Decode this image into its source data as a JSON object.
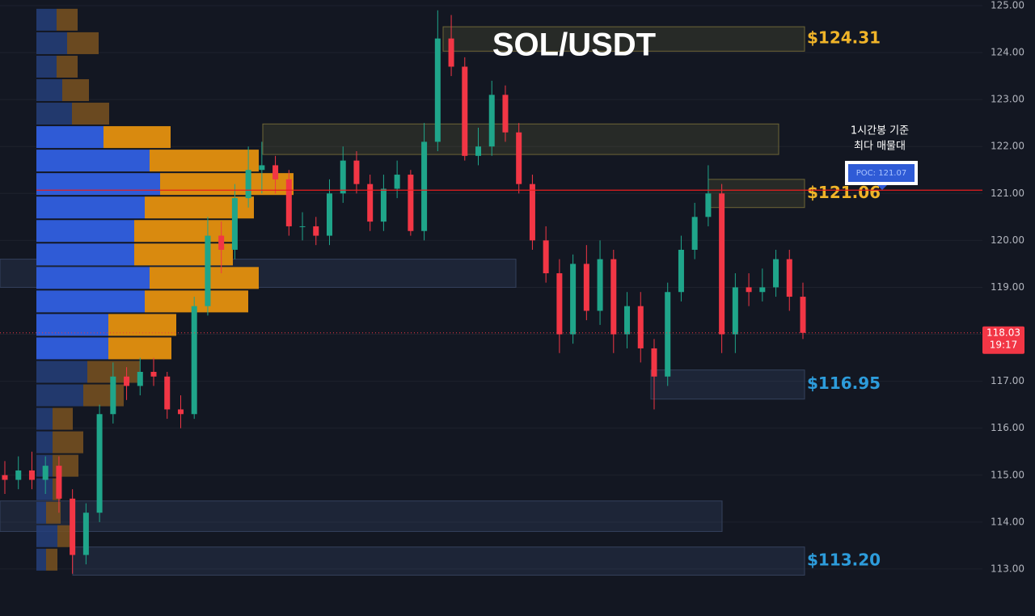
{
  "chart_data": {
    "type": "candlestick",
    "title": "SOL/USDT",
    "ylim": [
      112,
      125.12
    ],
    "yticks": [
      {
        "value": 125,
        "label": "125.00"
      },
      {
        "value": 124,
        "label": "124.00"
      },
      {
        "value": 123,
        "label": "123.00"
      },
      {
        "value": 122,
        "label": "122.00"
      },
      {
        "value": 121,
        "label": "121.00"
      },
      {
        "value": 120,
        "label": "120.00"
      },
      {
        "value": 119,
        "label": "119.00"
      },
      {
        "value": 118,
        "label": "118.00"
      },
      {
        "value": 117,
        "label": "117.00"
      },
      {
        "value": 116,
        "label": "116.00"
      },
      {
        "value": 115,
        "label": "115.00"
      },
      {
        "value": 114,
        "label": "114.00"
      },
      {
        "value": 113,
        "label": "113.00"
      }
    ],
    "grid": true,
    "up_color": "#1fa58a",
    "down_color": "#f23645",
    "candles": [
      [
        115.0,
        115.3,
        114.6,
        114.9
      ],
      [
        114.9,
        115.4,
        114.7,
        115.1
      ],
      [
        115.1,
        115.5,
        114.7,
        114.9
      ],
      [
        114.9,
        115.4,
        114.6,
        115.2
      ],
      [
        115.2,
        115.4,
        114.2,
        114.5
      ],
      [
        114.5,
        114.7,
        112.9,
        113.3
      ],
      [
        113.3,
        114.4,
        113.1,
        114.2
      ],
      [
        114.2,
        116.5,
        114.0,
        116.3
      ],
      [
        116.3,
        117.4,
        116.1,
        117.1
      ],
      [
        117.1,
        117.3,
        116.6,
        116.9
      ],
      [
        116.9,
        117.5,
        116.7,
        117.2
      ],
      [
        117.2,
        117.5,
        116.9,
        117.1
      ],
      [
        117.1,
        117.2,
        116.2,
        116.4
      ],
      [
        116.4,
        116.7,
        116.0,
        116.3
      ],
      [
        116.3,
        118.8,
        116.2,
        118.6
      ],
      [
        118.6,
        120.5,
        118.4,
        120.1
      ],
      [
        120.1,
        120.4,
        119.3,
        119.8
      ],
      [
        119.8,
        121.2,
        119.6,
        120.9
      ],
      [
        120.9,
        122.0,
        120.7,
        121.5
      ],
      [
        121.5,
        122.1,
        121.0,
        121.6
      ],
      [
        121.6,
        121.8,
        121.0,
        121.3
      ],
      [
        121.3,
        121.5,
        120.1,
        120.3
      ],
      [
        120.3,
        120.6,
        120.0,
        120.3
      ],
      [
        120.3,
        120.5,
        119.9,
        120.1
      ],
      [
        120.1,
        121.3,
        119.9,
        121.0
      ],
      [
        121.0,
        122.0,
        120.8,
        121.7
      ],
      [
        121.7,
        121.9,
        121.0,
        121.2
      ],
      [
        121.2,
        121.4,
        120.2,
        120.4
      ],
      [
        120.4,
        121.4,
        120.2,
        121.1
      ],
      [
        121.1,
        121.7,
        120.9,
        121.4
      ],
      [
        121.4,
        121.5,
        120.1,
        120.2
      ],
      [
        120.2,
        122.5,
        120.0,
        122.1
      ],
      [
        122.1,
        124.9,
        121.9,
        124.3
      ],
      [
        124.3,
        124.8,
        123.5,
        123.7
      ],
      [
        123.7,
        123.9,
        121.7,
        121.8
      ],
      [
        121.8,
        122.4,
        121.6,
        122.0
      ],
      [
        122.0,
        123.4,
        121.8,
        123.1
      ],
      [
        123.1,
        123.3,
        122.1,
        122.3
      ],
      [
        122.3,
        122.5,
        121.0,
        121.2
      ],
      [
        121.2,
        121.4,
        119.8,
        120.0
      ],
      [
        120.0,
        120.3,
        119.1,
        119.3
      ],
      [
        119.3,
        119.6,
        117.6,
        118.0
      ],
      [
        118.0,
        119.7,
        117.8,
        119.5
      ],
      [
        119.5,
        119.9,
        118.3,
        118.5
      ],
      [
        118.5,
        120.0,
        118.2,
        119.6
      ],
      [
        119.6,
        119.8,
        117.6,
        118.0
      ],
      [
        118.0,
        118.9,
        117.7,
        118.6
      ],
      [
        118.6,
        118.9,
        117.4,
        117.7
      ],
      [
        117.7,
        117.9,
        116.4,
        117.1
      ],
      [
        117.1,
        119.1,
        116.9,
        118.9
      ],
      [
        118.9,
        120.1,
        118.7,
        119.8
      ],
      [
        119.8,
        120.8,
        119.6,
        120.5
      ],
      [
        120.5,
        121.6,
        120.3,
        121.0
      ],
      [
        121.0,
        121.2,
        117.6,
        118.0
      ],
      [
        118.0,
        119.3,
        117.6,
        119.0
      ],
      [
        119.0,
        119.3,
        118.6,
        118.9
      ],
      [
        118.9,
        119.4,
        118.7,
        119.0
      ],
      [
        119.0,
        119.8,
        118.8,
        119.6
      ],
      [
        119.6,
        119.8,
        118.5,
        118.8
      ],
      [
        118.8,
        119.1,
        117.9,
        118.03
      ]
    ],
    "volume_profile": {
      "bins": [
        124.95,
        124.45,
        123.95,
        123.45,
        122.95,
        122.45,
        121.95,
        121.45,
        120.95,
        120.45,
        119.95,
        119.45,
        118.95,
        118.45,
        117.95,
        117.45,
        116.95,
        116.45,
        115.95,
        115.45,
        114.95,
        114.45,
        113.95,
        113.45,
        112.95
      ],
      "buy": [
        25,
        38,
        25,
        32,
        44,
        83,
        140,
        153,
        134,
        121,
        121,
        140,
        134,
        89,
        89,
        63,
        58,
        20,
        20,
        20,
        20,
        12,
        26,
        12
      ],
      "sell": [
        26,
        39,
        26,
        33,
        46,
        83,
        135,
        165,
        135,
        122,
        122,
        135,
        128,
        84,
        78,
        65,
        50,
        25,
        38,
        32,
        10,
        18,
        20,
        14
      ],
      "value_area": [
        117.45,
        122.45
      ],
      "buy_color": "#2f5bd6",
      "sell_color": "#d98a0f",
      "buy_dim_color": "#26407a",
      "sell_dim_color": "#7a5220"
    },
    "zones": [
      {
        "high": 124.55,
        "low": 124.03,
        "kind": "gold",
        "label": "$124.31"
      },
      {
        "high": 122.48,
        "low": 121.83,
        "kind": "gold"
      },
      {
        "high": 121.3,
        "low": 120.7,
        "kind": "gold",
        "label": "$121.06"
      },
      {
        "high": 119.6,
        "low": 119.0,
        "kind": "blue"
      },
      {
        "high": 117.24,
        "low": 116.62,
        "kind": "blue",
        "label": "$116.95"
      },
      {
        "high": 114.45,
        "low": 113.8,
        "kind": "blue"
      },
      {
        "high": 113.47,
        "low": 112.87,
        "kind": "blue",
        "label": "$113.20"
      }
    ],
    "poc": {
      "value": 121.07,
      "label": "POC: 121.07"
    },
    "poc_color": "#e81e1e",
    "annotation": [
      "1시간봉 기준",
      "최다 매물대"
    ],
    "last_price": 118.03,
    "countdown": "19:17"
  }
}
